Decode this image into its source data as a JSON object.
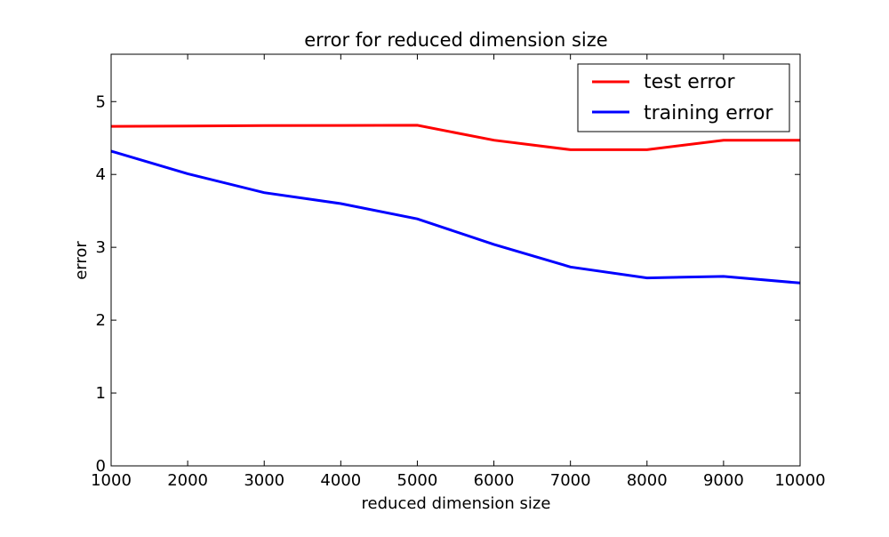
{
  "chart_data": {
    "type": "line",
    "title": "error for reduced dimension size",
    "xlabel": "reduced dimension size",
    "ylabel": "error",
    "x": [
      1000,
      2000,
      3000,
      4000,
      5000,
      6000,
      7000,
      8000,
      9000,
      10000
    ],
    "xlim": [
      1000,
      10000
    ],
    "ylim": [
      0,
      5.65
    ],
    "xticks": [
      1000,
      2000,
      3000,
      4000,
      5000,
      6000,
      7000,
      8000,
      9000,
      10000
    ],
    "yticks": [
      0,
      1,
      2,
      3,
      4,
      5
    ],
    "grid": false,
    "legend_position": "top-right",
    "series": [
      {
        "name": "test error",
        "color": "#ff0000",
        "values": [
          4.66,
          4.665,
          4.67,
          4.672,
          4.675,
          4.47,
          4.34,
          4.34,
          4.47,
          4.47
        ]
      },
      {
        "name": "training error",
        "color": "#0000ff",
        "values": [
          4.32,
          4.01,
          3.75,
          3.6,
          3.39,
          3.04,
          2.73,
          2.58,
          2.6,
          2.51
        ]
      }
    ]
  }
}
